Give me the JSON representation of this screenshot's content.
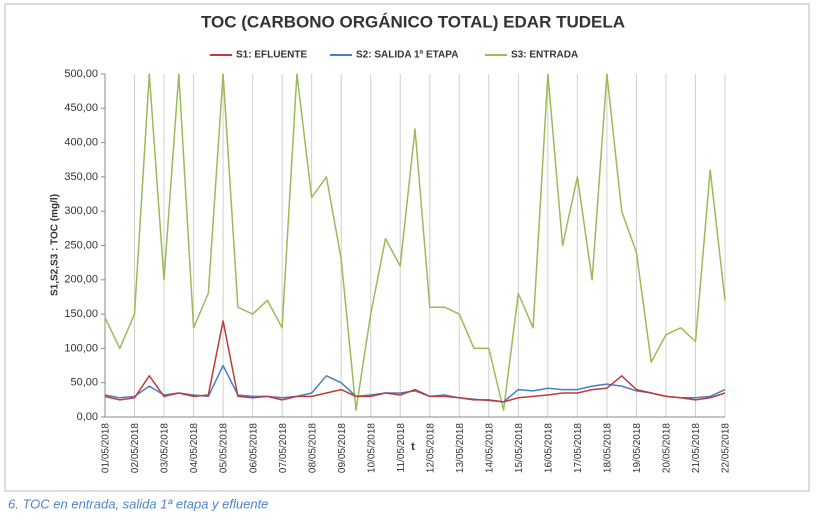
{
  "chart_data": {
    "type": "line",
    "title": "TOC (CARBONO ORGÁNICO TOTAL) EDAR TUDELA",
    "xlabel": "t",
    "ylabel": "S1,S2,S3 : TOC (mg/l)",
    "caption": "6. TOC en entrada, salida 1ª etapa y efluente",
    "x": [
      0,
      0.5,
      1,
      1.5,
      2,
      2.5,
      3,
      3.5,
      4,
      4.5,
      5,
      5.5,
      6,
      6.5,
      7,
      7.5,
      8,
      8.5,
      9,
      9.5,
      10,
      10.5,
      11,
      11.5,
      12,
      12.5,
      13,
      13.5,
      14,
      14.5,
      15,
      15.5,
      16,
      16.5,
      17,
      17.5,
      18,
      18.5,
      19,
      19.5,
      20,
      20.5,
      21
    ],
    "series": [
      {
        "name": "S1: EFLUENTE",
        "color": "#c0393b",
        "values": [
          30,
          25,
          28,
          60,
          30,
          35,
          30,
          32,
          140,
          30,
          28,
          30,
          25,
          30,
          30,
          35,
          40,
          30,
          30,
          35,
          32,
          40,
          30,
          30,
          28,
          25,
          25,
          22,
          28,
          30,
          32,
          35,
          35,
          40,
          42,
          60,
          40,
          35,
          30,
          28,
          25,
          28,
          35
        ]
      },
      {
        "name": "S2: SALIDA 1ª ETAPA",
        "color": "#4a7ec4",
        "values": [
          32,
          28,
          30,
          45,
          32,
          35,
          32,
          30,
          75,
          32,
          30,
          30,
          28,
          30,
          35,
          60,
          50,
          30,
          32,
          35,
          35,
          38,
          30,
          32,
          28,
          26,
          24,
          22,
          40,
          38,
          42,
          40,
          40,
          45,
          48,
          45,
          38,
          35,
          30,
          28,
          28,
          30,
          40
        ]
      },
      {
        "name": "S3: ENTRADA",
        "color": "#9bbb59",
        "values": [
          145,
          100,
          150,
          500,
          200,
          500,
          130,
          180,
          500,
          160,
          150,
          170,
          130,
          500,
          320,
          350,
          230,
          10,
          150,
          260,
          220,
          420,
          160,
          160,
          150,
          100,
          100,
          10,
          180,
          130,
          500,
          250,
          350,
          200,
          500,
          300,
          240,
          80,
          120,
          130,
          110,
          360,
          170
        ]
      }
    ],
    "xlim": [
      0,
      21
    ],
    "xticks": [
      {
        "value": 0,
        "label": "01/05/2018"
      },
      {
        "value": 1,
        "label": "02/05/2018"
      },
      {
        "value": 2,
        "label": "03/05/2018"
      },
      {
        "value": 3,
        "label": "04/05/2018"
      },
      {
        "value": 4,
        "label": "05/05/2018"
      },
      {
        "value": 5,
        "label": "06/05/2018"
      },
      {
        "value": 6,
        "label": "07/05/2018"
      },
      {
        "value": 7,
        "label": "08/05/2018"
      },
      {
        "value": 8,
        "label": "09/05/2018"
      },
      {
        "value": 9,
        "label": "10/05/2018"
      },
      {
        "value": 10,
        "label": "11/05/2018"
      },
      {
        "value": 11,
        "label": "12/05/2018"
      },
      {
        "value": 12,
        "label": "13/05/2018"
      },
      {
        "value": 13,
        "label": "14/05/2018"
      },
      {
        "value": 14,
        "label": "15/05/2018"
      },
      {
        "value": 15,
        "label": "16/05/2018"
      },
      {
        "value": 16,
        "label": "17/05/2018"
      },
      {
        "value": 17,
        "label": "18/05/2018"
      },
      {
        "value": 18,
        "label": "19/05/2018"
      },
      {
        "value": 19,
        "label": "20/05/2018"
      },
      {
        "value": 20,
        "label": "21/05/2018"
      },
      {
        "value": 21,
        "label": "22/05/2018"
      }
    ],
    "ylim": [
      0,
      500
    ],
    "yticks": [
      {
        "value": 0,
        "label": "0,00"
      },
      {
        "value": 50,
        "label": "50,00"
      },
      {
        "value": 100,
        "label": "100,00"
      },
      {
        "value": 150,
        "label": "150,00"
      },
      {
        "value": 200,
        "label": "200,00"
      },
      {
        "value": 250,
        "label": "250,00"
      },
      {
        "value": 300,
        "label": "300,00"
      },
      {
        "value": 350,
        "label": "350,00"
      },
      {
        "value": 400,
        "label": "400,00"
      },
      {
        "value": 450,
        "label": "450,00"
      },
      {
        "value": 500,
        "label": "500,00"
      }
    ],
    "grid": "x",
    "legend": "top"
  }
}
